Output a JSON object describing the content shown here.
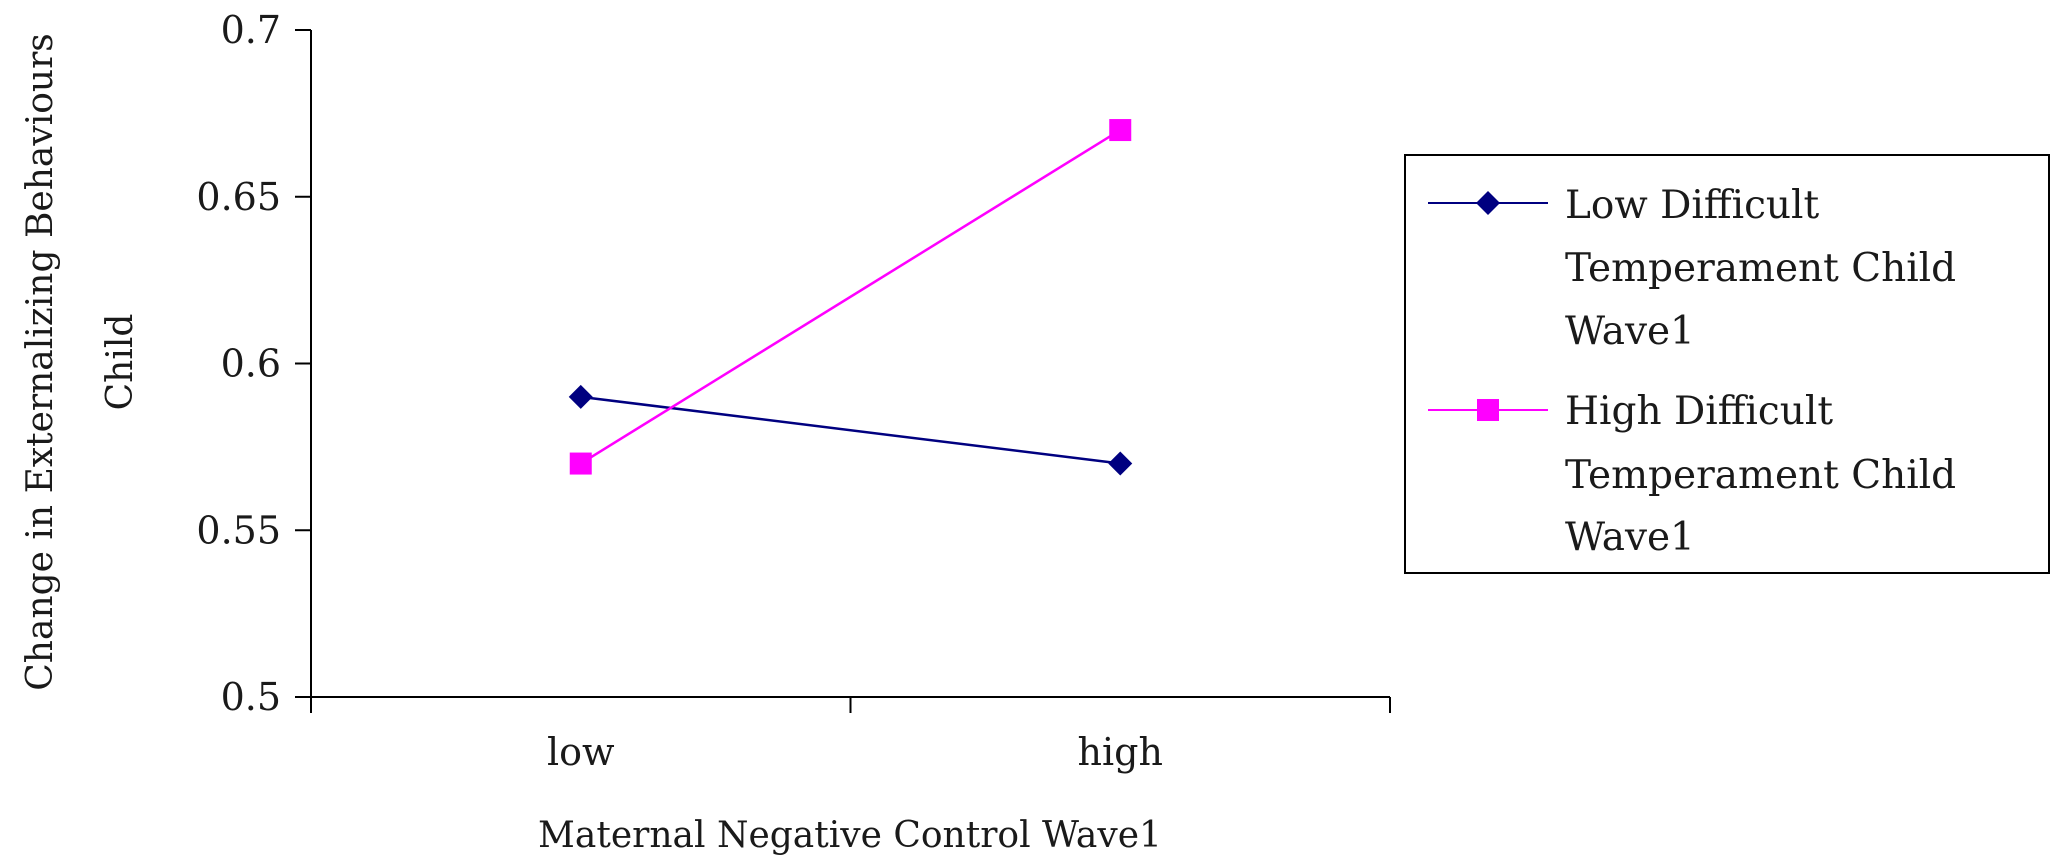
{
  "chart_data": {
    "type": "line",
    "categories": [
      "low",
      "high"
    ],
    "series": [
      {
        "name": "Low Difficult Temperament Child Wave1",
        "name_lines": [
          "Low Difficult",
          "Temperament Child",
          "Wave1"
        ],
        "values": [
          0.59,
          0.57
        ],
        "color": "#000080",
        "marker": "diamond"
      },
      {
        "name": "High Difficult Temperament Child Wave1",
        "name_lines": [
          "High Difficult",
          "Temperament Child",
          "Wave1"
        ],
        "values": [
          0.57,
          0.67
        ],
        "color": "#FF00FF",
        "marker": "square"
      }
    ],
    "xlabel": "Maternal Negative Control Wave1",
    "ylabel_lines": [
      "Change in Externalizing Behaviours",
      "Child"
    ],
    "ylim": [
      0.5,
      0.7
    ],
    "yticks": [
      "0.5",
      "0.55",
      "0.6",
      "0.65",
      "0.7"
    ],
    "grid": false,
    "legend_position": "right"
  }
}
